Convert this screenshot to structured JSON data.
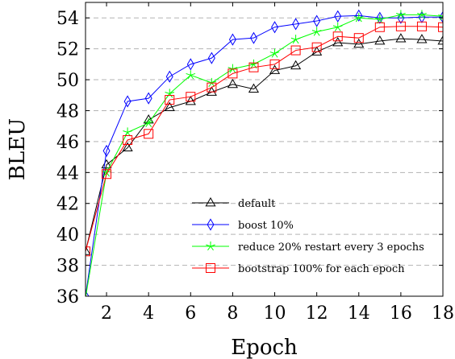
{
  "chart_data": {
    "type": "line",
    "title": "",
    "xlabel": "Epoch",
    "ylabel": "BLEU",
    "xlim": [
      1,
      18
    ],
    "ylim": [
      36,
      55
    ],
    "xticks": [
      2,
      4,
      6,
      8,
      10,
      12,
      14,
      16,
      18
    ],
    "yticks": [
      36,
      38,
      40,
      42,
      44,
      46,
      48,
      50,
      52,
      54
    ],
    "grid": "horizontal dashed",
    "legend_position": "bottom-center",
    "x": [
      1,
      2,
      3,
      4,
      5,
      6,
      7,
      8,
      9,
      10,
      11,
      12,
      13,
      14,
      15,
      16,
      17,
      18
    ],
    "series": [
      {
        "name": "default",
        "color": "#000000",
        "marker": "triangle",
        "values": [
          38.9,
          44.5,
          45.6,
          47.4,
          48.2,
          48.6,
          49.2,
          49.7,
          49.4,
          50.6,
          50.9,
          51.8,
          52.4,
          52.3,
          52.5,
          52.65,
          52.6,
          52.5
        ]
      },
      {
        "name": "boost 10%",
        "color": "#0000ff",
        "marker": "diamond",
        "values": [
          36.0,
          45.4,
          48.6,
          48.8,
          50.2,
          51.0,
          51.4,
          52.6,
          52.7,
          53.4,
          53.6,
          53.8,
          54.1,
          54.15,
          54.0,
          54.0,
          54.05,
          54.05
        ]
      },
      {
        "name": "reduce 20% restart every 3 epochs",
        "color": "#00ff00",
        "marker": "star",
        "values": [
          35.9,
          44.0,
          46.6,
          47.2,
          49.1,
          50.3,
          49.8,
          50.7,
          51.0,
          51.7,
          52.6,
          53.1,
          53.4,
          54.0,
          53.9,
          54.2,
          54.2,
          54.1
        ]
      },
      {
        "name": "bootstrap 100% for each epoch",
        "color": "#ff0000",
        "marker": "square",
        "values": [
          38.9,
          43.9,
          46.1,
          46.5,
          48.7,
          48.9,
          49.5,
          50.4,
          50.8,
          51.0,
          51.9,
          52.1,
          52.8,
          52.7,
          53.4,
          53.45,
          53.45,
          53.4
        ]
      }
    ]
  }
}
